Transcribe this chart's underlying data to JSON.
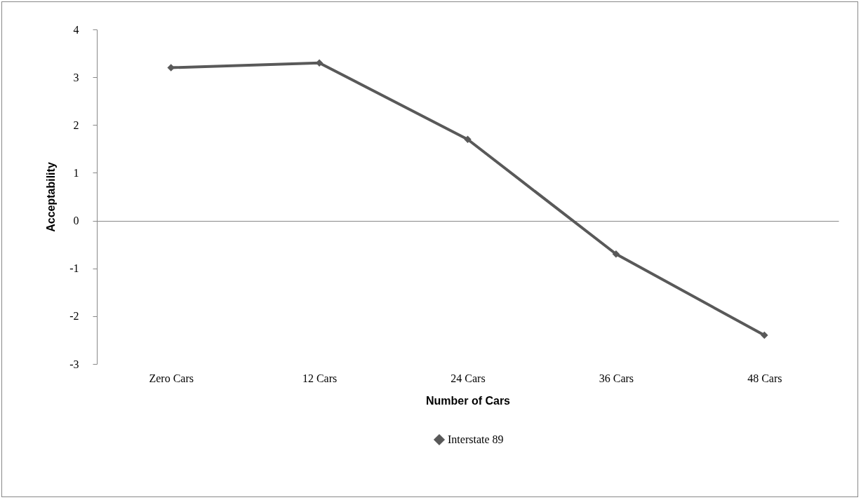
{
  "chart_data": {
    "type": "line",
    "xlabel": "Number of Cars",
    "ylabel": "Acceptability",
    "categories": [
      "Zero Cars",
      "12 Cars",
      "24 Cars",
      "36 Cars",
      "48 Cars"
    ],
    "series": [
      {
        "name": "Interstate 89",
        "color": "#595959",
        "values": [
          3.2,
          3.3,
          1.7,
          -0.7,
          -2.4
        ]
      }
    ],
    "ylim": [
      -3,
      4
    ],
    "yticks": [
      -3,
      -2,
      -1,
      0,
      1,
      2,
      3,
      4
    ],
    "marker": "diamond",
    "legend": "bottom",
    "line_style": "solid"
  }
}
